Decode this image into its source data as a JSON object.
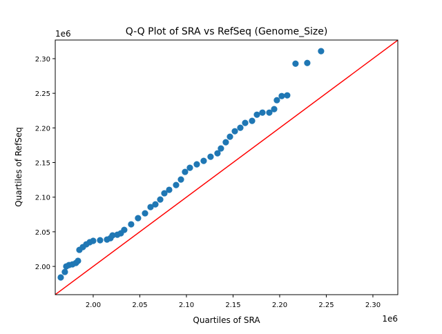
{
  "chart_data": {
    "type": "scatter",
    "title": "Q-Q Plot of SRA vs RefSeq (Genome_Size)",
    "xlabel": "Quartiles of SRA",
    "ylabel": "Quartiles of RefSeq",
    "x_offset_label": "1e6",
    "y_offset_label": "1e6",
    "xlim": [
      1.9593,
      2.3267
    ],
    "ylim": [
      1.9592,
      2.3269
    ],
    "xticks": [
      "2.00",
      "2.05",
      "2.10",
      "2.15",
      "2.20",
      "2.25",
      "2.30"
    ],
    "yticks": [
      "2.00",
      "2.05",
      "2.10",
      "2.15",
      "2.20",
      "2.25",
      "2.30"
    ],
    "grid": false,
    "marker_color": "#1f77b4",
    "reference_line": {
      "type": "y=x",
      "color": "#ff0000"
    },
    "points": [
      [
        1.9652,
        1.9841
      ],
      [
        1.9696,
        1.992
      ],
      [
        1.9711,
        2.0
      ],
      [
        1.9741,
        2.002
      ],
      [
        1.9778,
        2.003
      ],
      [
        1.9815,
        2.005
      ],
      [
        1.9837,
        2.008
      ],
      [
        1.9852,
        2.0239
      ],
      [
        1.9889,
        2.0279
      ],
      [
        1.9926,
        2.0319
      ],
      [
        1.9963,
        2.0349
      ],
      [
        2.0,
        2.0369
      ],
      [
        2.0074,
        2.0378
      ],
      [
        2.0148,
        2.0388
      ],
      [
        2.0185,
        2.0408
      ],
      [
        2.0207,
        2.0448
      ],
      [
        2.0259,
        2.0458
      ],
      [
        2.0296,
        2.0478
      ],
      [
        2.0333,
        2.0528
      ],
      [
        2.0407,
        2.0608
      ],
      [
        2.0481,
        2.0697
      ],
      [
        2.0556,
        2.0767
      ],
      [
        2.0615,
        2.0857
      ],
      [
        2.0667,
        2.0896
      ],
      [
        2.0719,
        2.0966
      ],
      [
        2.0763,
        2.1056
      ],
      [
        2.0815,
        2.1106
      ],
      [
        2.0889,
        2.1175
      ],
      [
        2.0941,
        2.1255
      ],
      [
        2.0985,
        2.1365
      ],
      [
        2.1037,
        2.1424
      ],
      [
        2.1111,
        2.1474
      ],
      [
        2.1185,
        2.1524
      ],
      [
        2.1259,
        2.1584
      ],
      [
        2.1333,
        2.1633
      ],
      [
        2.137,
        2.1703
      ],
      [
        2.1422,
        2.1793
      ],
      [
        2.1467,
        2.1873
      ],
      [
        2.1519,
        2.1952
      ],
      [
        2.1578,
        2.2002
      ],
      [
        2.163,
        2.2072
      ],
      [
        2.1704,
        2.2102
      ],
      [
        2.1756,
        2.2191
      ],
      [
        2.1815,
        2.2221
      ],
      [
        2.1889,
        2.2221
      ],
      [
        2.1941,
        2.2271
      ],
      [
        2.197,
        2.24
      ],
      [
        2.2022,
        2.246
      ],
      [
        2.2081,
        2.247
      ],
      [
        2.217,
        2.2928
      ],
      [
        2.2296,
        2.2938
      ],
      [
        2.2444,
        2.3108
      ]
    ]
  }
}
